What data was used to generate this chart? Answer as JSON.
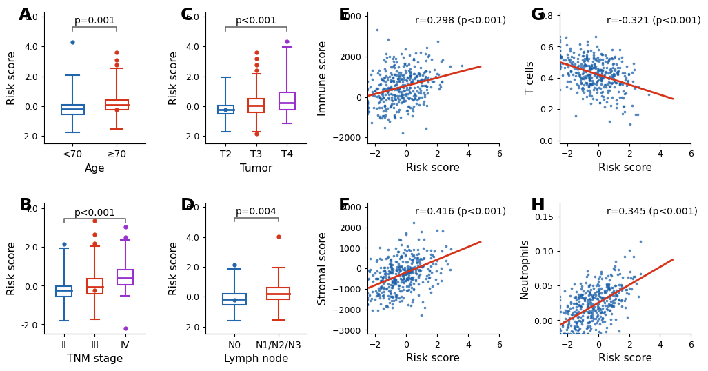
{
  "boxplot_A": {
    "title": "Age",
    "ylabel": "Risk score",
    "pval": "p=0.001",
    "groups": [
      "<70",
      "≥70"
    ],
    "colors": [
      "#2166ac",
      "#d6341a"
    ],
    "medians": [
      -0.18,
      0.08
    ],
    "q1": [
      -0.55,
      -0.22
    ],
    "q3": [
      0.1,
      0.42
    ],
    "whislo": [
      -1.75,
      -1.52
    ],
    "whishi": [
      2.05,
      2.55
    ],
    "fliers_pos": [
      [
        4.3
      ],
      [
        3.6,
        3.1,
        2.75
      ]
    ],
    "fliers_neg": [
      [],
      [
        -0.25
      ]
    ],
    "ylim": [
      -2.5,
      6.3
    ],
    "yticks": [
      -2.0,
      0.0,
      2.0,
      4.0,
      6.0
    ]
  },
  "boxplot_B": {
    "title": "TNM stage",
    "ylabel": "Risk score",
    "pval": "p<0.001",
    "groups": [
      "II",
      "III",
      "IV"
    ],
    "colors": [
      "#2166ac",
      "#d6341a",
      "#9932cc"
    ],
    "medians": [
      -0.25,
      -0.05,
      0.42
    ],
    "q1": [
      -0.55,
      -0.42,
      0.05
    ],
    "q3": [
      -0.02,
      0.38,
      0.82
    ],
    "whislo": [
      -1.82,
      -1.72,
      -0.52
    ],
    "whishi": [
      1.95,
      2.05,
      2.35
    ],
    "fliers_pos": [
      [
        2.15
      ],
      [
        3.35,
        2.65,
        2.2
      ],
      [
        3.05,
        2.5
      ]
    ],
    "fliers_neg": [
      [],
      [
        -0.25
      ],
      [
        -2.2
      ]
    ],
    "ylim": [
      -2.5,
      4.3
    ],
    "yticks": [
      -2.0,
      0.0,
      2.0,
      4.0
    ]
  },
  "boxplot_C": {
    "title": "Tumor",
    "ylabel": "Risk score",
    "pval": "p<0.001",
    "groups": [
      "T2",
      "T3",
      "T4"
    ],
    "colors": [
      "#2166ac",
      "#d6341a",
      "#9932cc"
    ],
    "medians": [
      -0.22,
      0.04,
      0.22
    ],
    "q1": [
      -0.52,
      -0.42,
      -0.25
    ],
    "q3": [
      0.05,
      0.48,
      0.92
    ],
    "whislo": [
      -1.72,
      -1.72,
      -1.18
    ],
    "whishi": [
      1.95,
      2.15,
      3.95
    ],
    "fliers_pos": [
      [],
      [
        3.6,
        3.2,
        2.75,
        2.4
      ],
      [
        4.35
      ]
    ],
    "fliers_neg": [
      [
        -0.22
      ],
      [
        -1.85
      ],
      []
    ],
    "ylim": [
      -2.5,
      6.3
    ],
    "yticks": [
      -2.0,
      0.0,
      2.0,
      4.0,
      6.0
    ]
  },
  "boxplot_D": {
    "title": "Lymph node",
    "ylabel": "Risk score",
    "pval": "p=0.004",
    "groups": [
      "N0",
      "N1/N2/N3"
    ],
    "colors": [
      "#2166ac",
      "#d6341a"
    ],
    "medians": [
      -0.15,
      0.22
    ],
    "q1": [
      -0.52,
      -0.18
    ],
    "q3": [
      0.18,
      0.62
    ],
    "whislo": [
      -1.62,
      -1.55
    ],
    "whishi": [
      1.85,
      1.95
    ],
    "fliers_pos": [
      [
        2.15
      ],
      [
        4.05
      ]
    ],
    "fliers_neg": [
      [
        -0.22
      ],
      []
    ],
    "ylim": [
      -2.5,
      6.3
    ],
    "yticks": [
      -2.0,
      0.0,
      2.0,
      4.0,
      6.0
    ]
  },
  "scatter_E": {
    "title": "r=0.298 (p<0.001)",
    "xlabel": "Risk score",
    "ylabel": "Immune score",
    "xlim": [
      -2.5,
      6.0
    ],
    "ylim": [
      -2300,
      4200
    ],
    "yticks": [
      -2000,
      0,
      2000,
      4000
    ],
    "xticks": [
      -2,
      0,
      2,
      4,
      6
    ],
    "x_mean": -0.3,
    "x_std": 1.2,
    "y_mean": 500,
    "y_std": 900,
    "slope": 200,
    "intercept": 550,
    "noise": 800,
    "dot_color": "#1a5fa8",
    "line_color": "#d6341a"
  },
  "scatter_F": {
    "title": "r=0.416 (p<0.001)",
    "xlabel": "Risk score",
    "ylabel": "Stromal score",
    "xlim": [
      -2.5,
      6.0
    ],
    "ylim": [
      -3200,
      3200
    ],
    "yticks": [
      -3000,
      -2000,
      -1000,
      0,
      1000,
      2000,
      3000
    ],
    "xticks": [
      -2,
      0,
      2,
      4,
      6
    ],
    "x_mean": -0.3,
    "x_std": 1.2,
    "y_mean": -400,
    "y_std": 800,
    "slope": 310,
    "intercept": -200,
    "noise": 700,
    "dot_color": "#1a5fa8",
    "line_color": "#d6341a"
  },
  "scatter_G": {
    "title": "r=-0.321 (p<0.001)",
    "xlabel": "Risk score",
    "ylabel": "T cells",
    "xlim": [
      -2.5,
      6.0
    ],
    "ylim": [
      -0.02,
      0.82
    ],
    "yticks": [
      0.0,
      0.2,
      0.4,
      0.6,
      0.8
    ],
    "xticks": [
      -2,
      0,
      2,
      4,
      6
    ],
    "x_mean": -0.3,
    "x_std": 1.2,
    "y_mean": 0.38,
    "y_std": 0.1,
    "slope": -0.032,
    "intercept": 0.42,
    "noise": 0.09,
    "dot_color": "#1a5fa8",
    "line_color": "#d6341a"
  },
  "scatter_H": {
    "title": "r=0.345 (p<0.001)",
    "xlabel": "Risk score",
    "ylabel": "Neutrophils",
    "xlim": [
      -2.5,
      6.0
    ],
    "ylim": [
      -0.02,
      0.17
    ],
    "yticks": [
      0.0,
      0.05,
      0.1,
      0.15
    ],
    "xticks": [
      -2,
      0,
      2,
      4,
      6
    ],
    "x_mean": -0.3,
    "x_std": 1.2,
    "y_mean": 0.025,
    "y_std": 0.028,
    "slope": 0.013,
    "intercept": 0.025,
    "noise": 0.022,
    "dot_color": "#1a5fa8",
    "line_color": "#d6341a"
  },
  "background_color": "#ffffff",
  "font_size_ylabel": 11,
  "font_size_xlabel": 11,
  "font_size_panel": 18,
  "font_size_tick": 9,
  "font_size_annot": 10,
  "font_size_pval": 10
}
